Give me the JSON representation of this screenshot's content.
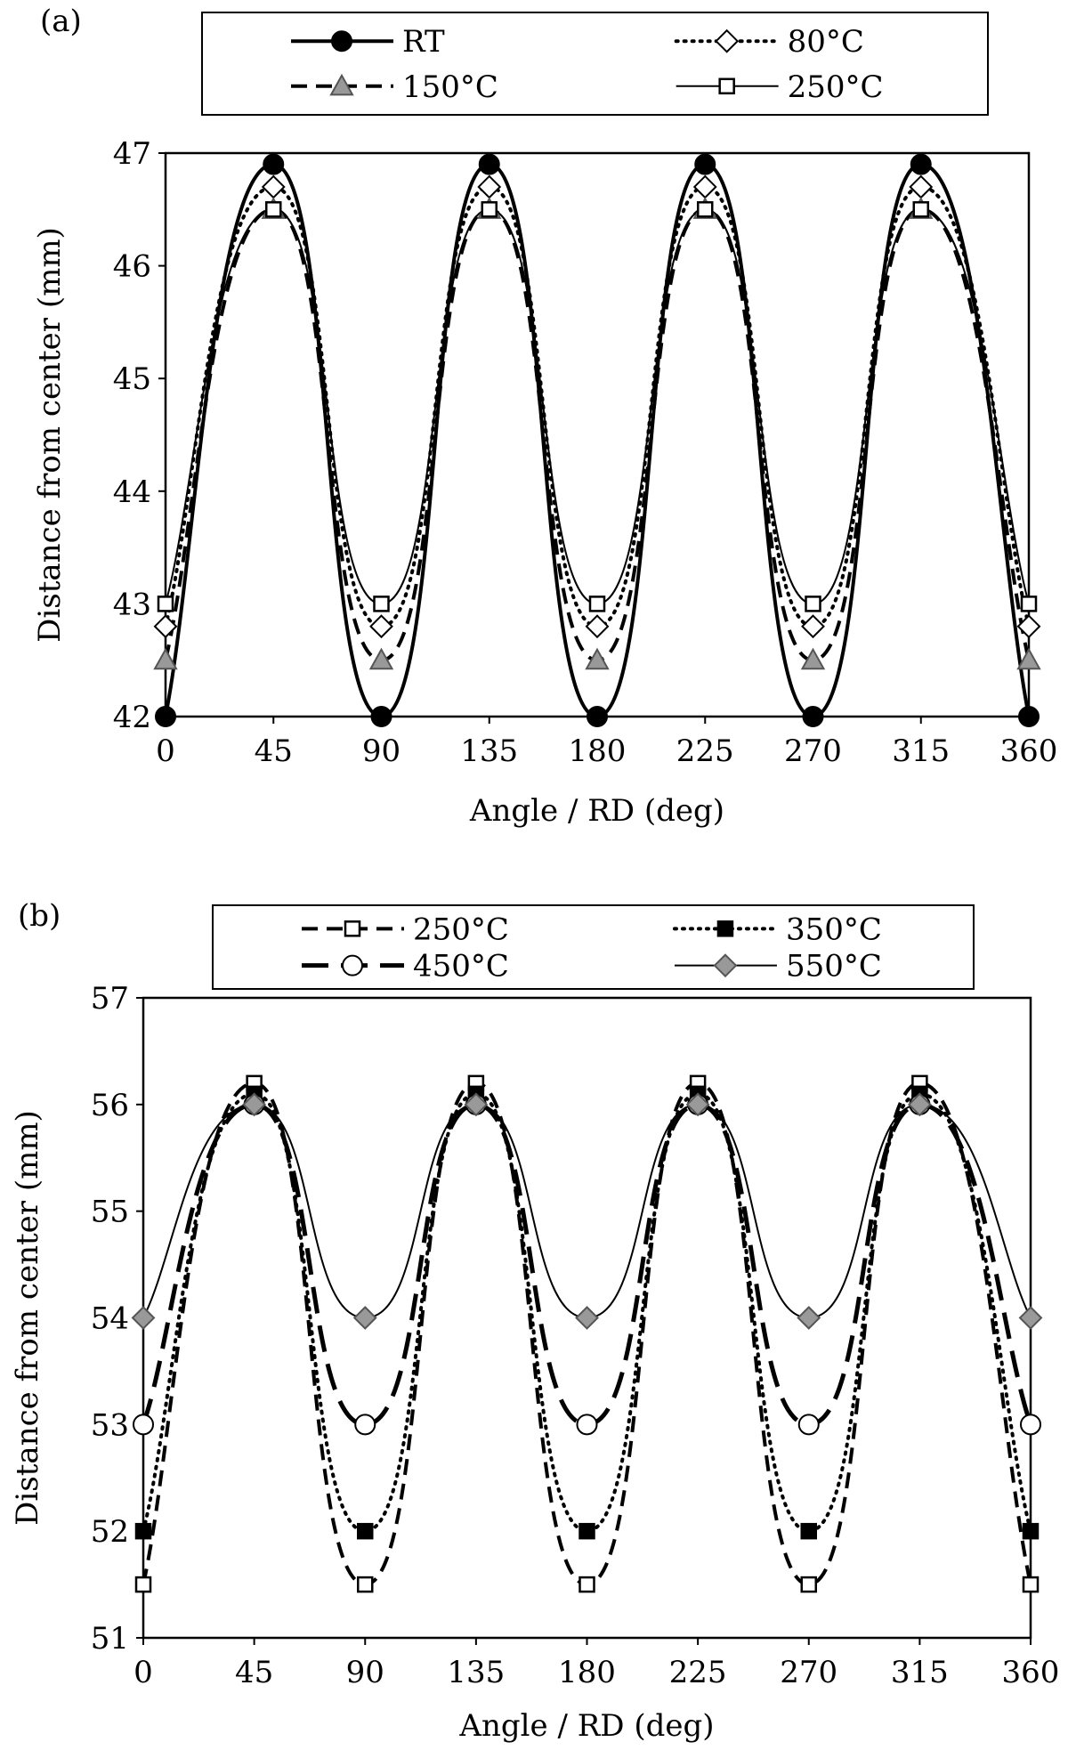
{
  "chart_data": [
    {
      "panel_label": "(a)",
      "type": "line",
      "xlabel": "Angle / RD (deg)",
      "ylabel": "Distance from center (mm)",
      "xlim": [
        0,
        360
      ],
      "ylim": [
        42,
        47
      ],
      "x_ticks": [
        0,
        45,
        90,
        135,
        180,
        225,
        270,
        315,
        360
      ],
      "y_ticks": [
        42,
        43,
        44,
        45,
        46,
        47
      ],
      "x": [
        0,
        45,
        90,
        135,
        180,
        225,
        270,
        315,
        360
      ],
      "legend_position": "top",
      "series": [
        {
          "name": "RT",
          "values": [
            42,
            46.9,
            42,
            46.9,
            42,
            46.9,
            42,
            46.9,
            42
          ],
          "color": "#000000",
          "marker": "circle",
          "marker_fill": "#000000",
          "line_style": "solid-thick"
        },
        {
          "name": "80°C",
          "values": [
            42.8,
            46.7,
            42.8,
            46.7,
            42.8,
            46.7,
            42.8,
            46.7,
            42.8
          ],
          "color": "#000000",
          "marker": "diamond",
          "marker_fill": "#ffffff",
          "line_style": "dotted"
        },
        {
          "name": "150°C",
          "values": [
            42.5,
            46.5,
            42.5,
            46.5,
            42.5,
            46.5,
            42.5,
            46.5,
            42.5
          ],
          "color": "#000000",
          "marker": "triangle",
          "marker_fill": "#999999",
          "line_style": "dashed"
        },
        {
          "name": "250°C",
          "values": [
            43,
            46.5,
            43,
            46.5,
            43,
            46.5,
            43,
            46.5,
            43
          ],
          "color": "#000000",
          "marker": "square",
          "marker_fill": "#ffffff",
          "line_style": "solid-thin"
        }
      ]
    },
    {
      "panel_label": "(b)",
      "type": "line",
      "xlabel": "Angle / RD (deg)",
      "ylabel": "Distance from center (mm)",
      "xlim": [
        0,
        360
      ],
      "ylim": [
        51,
        57
      ],
      "x_ticks": [
        0,
        45,
        90,
        135,
        180,
        225,
        270,
        315,
        360
      ],
      "y_ticks": [
        51,
        52,
        53,
        54,
        55,
        56,
        57
      ],
      "x": [
        0,
        45,
        90,
        135,
        180,
        225,
        270,
        315,
        360
      ],
      "legend_position": "top",
      "series": [
        {
          "name": "250°C",
          "values": [
            51.5,
            56.2,
            51.5,
            56.2,
            51.5,
            56.2,
            51.5,
            56.2,
            51.5
          ],
          "color": "#000000",
          "marker": "square",
          "marker_fill": "#ffffff",
          "line_style": "dashed"
        },
        {
          "name": "350°C",
          "values": [
            52,
            56.1,
            52,
            56.1,
            52,
            56.1,
            52,
            56.1,
            52
          ],
          "color": "#000000",
          "marker": "square",
          "marker_fill": "#000000",
          "line_style": "dotted"
        },
        {
          "name": "450°C",
          "values": [
            53,
            56,
            53,
            56,
            53,
            56,
            53,
            56,
            53
          ],
          "color": "#000000",
          "marker": "circle",
          "marker_fill": "#ffffff",
          "line_style": "long-dash"
        },
        {
          "name": "550°C",
          "values": [
            54,
            56,
            54,
            56,
            54,
            56,
            54,
            56,
            54
          ],
          "color": "#000000",
          "marker": "diamond",
          "marker_fill": "#999999",
          "line_style": "solid-thin"
        }
      ]
    }
  ]
}
